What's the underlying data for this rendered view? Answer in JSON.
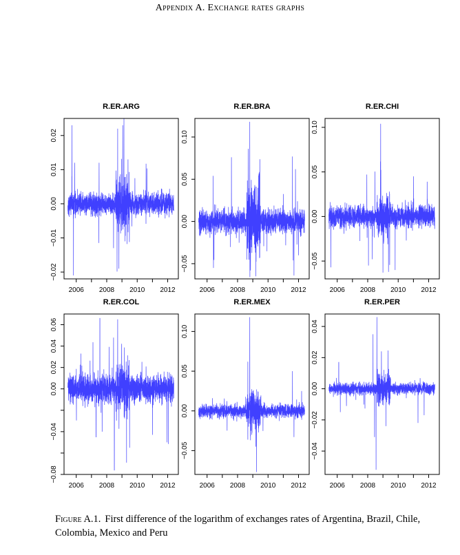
{
  "page": {
    "title": "Appendix A. Exchange rates graphs",
    "caption_label": "Figure A.1.",
    "caption_text": "First difference of the logarithm of exchanges rates of Argentina, Brazil, Chile, Colombia, Mexico and Peru"
  },
  "colors": {
    "series": "#0000ff",
    "axis": "#000000"
  },
  "chart_data": [
    {
      "type": "line",
      "title": "R.ER.ARG",
      "xlim": [
        2005.2,
        2012.7
      ],
      "ylim": [
        -0.022,
        0.025
      ],
      "x_ticks": [
        {
          "v": 2006,
          "label": "2006"
        },
        {
          "v": 2007,
          "label": ""
        },
        {
          "v": 2008,
          "label": "2008"
        },
        {
          "v": 2009,
          "label": ""
        },
        {
          "v": 2010,
          "label": "2010"
        },
        {
          "v": 2011,
          "label": ""
        },
        {
          "v": 2012,
          "label": "2012"
        }
      ],
      "y_ticks": [
        {
          "v": -0.02,
          "label": "-0.02"
        },
        {
          "v": -0.01,
          "label": "-0.01"
        },
        {
          "v": 0,
          "label": "0.00"
        },
        {
          "v": 0.01,
          "label": "0.01"
        },
        {
          "v": 0.02,
          "label": "0.02"
        }
      ],
      "series_range": [
        2005.45,
        2012.4
      ],
      "base_volatility": 0.0016,
      "crisis_multiplier": 2.5,
      "spikes": [
        [
          2005.72,
          0.023
        ],
        [
          2005.82,
          -0.021
        ],
        [
          2005.9,
          0.012
        ],
        [
          2007.5,
          0.012
        ],
        [
          2007.48,
          -0.0115
        ],
        [
          2008.45,
          -0.013
        ],
        [
          2008.72,
          0.022
        ],
        [
          2008.8,
          -0.019
        ],
        [
          2009.05,
          0.023
        ],
        [
          2009.2,
          -0.011
        ],
        [
          2009.85,
          0.0075
        ]
      ]
    },
    {
      "type": "line",
      "title": "R.ER.BRA",
      "xlim": [
        2005.2,
        2012.7
      ],
      "ylim": [
        -0.068,
        0.122
      ],
      "x_ticks": [
        {
          "v": 2006,
          "label": "2006"
        },
        {
          "v": 2007,
          "label": ""
        },
        {
          "v": 2008,
          "label": "2008"
        },
        {
          "v": 2009,
          "label": ""
        },
        {
          "v": 2010,
          "label": "2010"
        },
        {
          "v": 2011,
          "label": ""
        },
        {
          "v": 2012,
          "label": "2012"
        }
      ],
      "y_ticks": [
        {
          "v": -0.05,
          "label": "-0.05"
        },
        {
          "v": 0,
          "label": "0.00"
        },
        {
          "v": 0.05,
          "label": "0.05"
        },
        {
          "v": 0.1,
          "label": "0.10"
        }
      ],
      "series_range": [
        2005.45,
        2012.4
      ],
      "base_volatility": 0.007,
      "crisis_multiplier": 3,
      "spikes": [
        [
          2006.4,
          0.054
        ],
        [
          2006.42,
          -0.055
        ],
        [
          2007.6,
          0.076
        ],
        [
          2008.7,
          0.086
        ],
        [
          2008.8,
          0.118
        ],
        [
          2008.75,
          -0.045
        ],
        [
          2008.85,
          -0.058
        ],
        [
          2009.2,
          -0.065
        ],
        [
          2011.6,
          0.077
        ],
        [
          2011.7,
          -0.064
        ],
        [
          2011.8,
          0.062
        ],
        [
          2012.0,
          -0.04
        ]
      ]
    },
    {
      "type": "line",
      "title": "R.ER.CHI",
      "xlim": [
        2005.2,
        2012.7
      ],
      "ylim": [
        -0.07,
        0.11
      ],
      "x_ticks": [
        {
          "v": 2006,
          "label": "2006"
        },
        {
          "v": 2007,
          "label": ""
        },
        {
          "v": 2008,
          "label": "2008"
        },
        {
          "v": 2009,
          "label": ""
        },
        {
          "v": 2010,
          "label": "2010"
        },
        {
          "v": 2011,
          "label": ""
        },
        {
          "v": 2012,
          "label": "2012"
        }
      ],
      "y_ticks": [
        {
          "v": -0.05,
          "label": "-0.05"
        },
        {
          "v": 0,
          "label": "0.00"
        },
        {
          "v": 0.05,
          "label": "0.05"
        },
        {
          "v": 0.1,
          "label": "0.10"
        }
      ],
      "series_range": [
        2005.45,
        2012.4
      ],
      "base_volatility": 0.006,
      "crisis_multiplier": 2,
      "spikes": [
        [
          2005.58,
          -0.057
        ],
        [
          2008.05,
          -0.055
        ],
        [
          2008.3,
          -0.048
        ],
        [
          2008.85,
          0.104
        ],
        [
          2009.0,
          -0.063
        ],
        [
          2009.8,
          -0.06
        ],
        [
          2011.0,
          0.045
        ],
        [
          2011.9,
          0.039
        ]
      ]
    },
    {
      "type": "line",
      "title": "R.ER.COL",
      "xlim": [
        2005.2,
        2012.7
      ],
      "ylim": [
        -0.08,
        0.07
      ],
      "x_ticks": [
        {
          "v": 2006,
          "label": "2006"
        },
        {
          "v": 2007,
          "label": ""
        },
        {
          "v": 2008,
          "label": "2008"
        },
        {
          "v": 2009,
          "label": ""
        },
        {
          "v": 2010,
          "label": "2010"
        },
        {
          "v": 2011,
          "label": ""
        },
        {
          "v": 2012,
          "label": "2012"
        }
      ],
      "y_ticks": [
        {
          "v": -0.08,
          "label": "-0.08"
        },
        {
          "v": -0.06,
          "label": ""
        },
        {
          "v": -0.04,
          "label": "-0.04"
        },
        {
          "v": -0.02,
          "label": ""
        },
        {
          "v": 0,
          "label": "0.00"
        },
        {
          "v": 0.02,
          "label": "0.02"
        },
        {
          "v": 0.04,
          "label": "0.04"
        },
        {
          "v": 0.06,
          "label": "0.06"
        }
      ],
      "series_range": [
        2005.45,
        2012.4
      ],
      "base_volatility": 0.0065,
      "crisis_multiplier": 1.8,
      "spikes": [
        [
          2006.3,
          0.033
        ],
        [
          2007.3,
          -0.045
        ],
        [
          2007.55,
          0.066
        ],
        [
          2007.7,
          -0.04
        ],
        [
          2008.5,
          -0.076
        ],
        [
          2008.45,
          0.048
        ],
        [
          2008.72,
          0.065
        ],
        [
          2009.3,
          -0.069
        ],
        [
          2009.5,
          -0.055
        ],
        [
          2011.0,
          -0.043
        ],
        [
          2011.95,
          -0.05
        ]
      ]
    },
    {
      "type": "line",
      "title": "R.ER.MEX",
      "xlim": [
        2005.2,
        2012.7
      ],
      "ylim": [
        -0.08,
        0.122
      ],
      "x_ticks": [
        {
          "v": 2006,
          "label": "2006"
        },
        {
          "v": 2007,
          "label": ""
        },
        {
          "v": 2008,
          "label": "2008"
        },
        {
          "v": 2009,
          "label": ""
        },
        {
          "v": 2010,
          "label": "2010"
        },
        {
          "v": 2011,
          "label": ""
        },
        {
          "v": 2012,
          "label": "2012"
        }
      ],
      "y_ticks": [
        {
          "v": -0.05,
          "label": "-0.05"
        },
        {
          "v": 0,
          "label": "0.00"
        },
        {
          "v": 0.05,
          "label": "0.05"
        },
        {
          "v": 0.1,
          "label": "0.10"
        }
      ],
      "series_range": [
        2005.45,
        2012.4
      ],
      "base_volatility": 0.004,
      "crisis_multiplier": 3,
      "spikes": [
        [
          2008.8,
          0.118
        ],
        [
          2008.85,
          -0.037
        ],
        [
          2009.25,
          -0.077
        ],
        [
          2009.2,
          -0.045
        ],
        [
          2011.6,
          0.05
        ],
        [
          2011.7,
          -0.033
        ],
        [
          2012.2,
          0.025
        ]
      ]
    },
    {
      "type": "line",
      "title": "R.ER.PER",
      "xlim": [
        2005.2,
        2012.7
      ],
      "ylim": [
        -0.055,
        0.048
      ],
      "x_ticks": [
        {
          "v": 2006,
          "label": "2006"
        },
        {
          "v": 2007,
          "label": ""
        },
        {
          "v": 2008,
          "label": "2008"
        },
        {
          "v": 2009,
          "label": ""
        },
        {
          "v": 2010,
          "label": "2010"
        },
        {
          "v": 2011,
          "label": ""
        },
        {
          "v": 2012,
          "label": "2012"
        }
      ],
      "y_ticks": [
        {
          "v": -0.04,
          "label": "-0.04"
        },
        {
          "v": -0.02,
          "label": "-0.02"
        },
        {
          "v": 0,
          "label": "0.00"
        },
        {
          "v": 0.02,
          "label": "0.02"
        },
        {
          "v": 0.04,
          "label": "0.04"
        }
      ],
      "series_range": [
        2005.45,
        2012.4
      ],
      "base_volatility": 0.0018,
      "crisis_multiplier": 3,
      "spikes": [
        [
          2006.1,
          0.017
        ],
        [
          2006.2,
          -0.015
        ],
        [
          2008.35,
          0.035
        ],
        [
          2008.45,
          -0.031
        ],
        [
          2008.55,
          -0.052
        ],
        [
          2008.6,
          0.046
        ],
        [
          2008.9,
          0.024
        ],
        [
          2009.2,
          -0.024
        ],
        [
          2011.3,
          -0.022
        ],
        [
          2011.7,
          -0.017
        ]
      ]
    }
  ]
}
